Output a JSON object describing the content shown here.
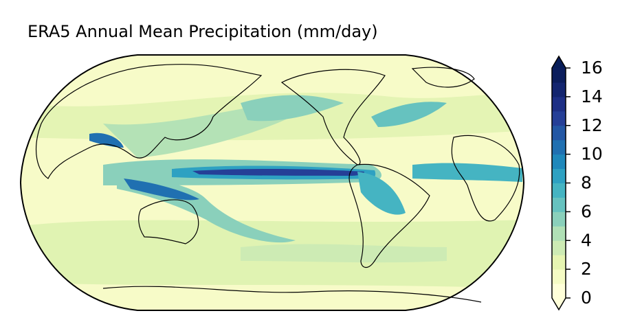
{
  "title": "ERA5 Annual Mean Precipitation (mm/day)",
  "colorbar": {
    "lim": [
      0,
      16
    ],
    "ticks": [
      0,
      2,
      4,
      6,
      8,
      10,
      12,
      14,
      16
    ],
    "colors": [
      "#ffffd9",
      "#f5fbc4",
      "#e6f5b2",
      "#cdebb4",
      "#b0e0b6",
      "#8ad0bb",
      "#66c2bf",
      "#45b4c2",
      "#2ea1c2",
      "#1f88bb",
      "#2070b1",
      "#2357a4",
      "#253f97",
      "#1d2f85",
      "#13256f",
      "#0b1d5c"
    ],
    "under_color": "#ffffd9",
    "over_color": "#081d58"
  }
}
